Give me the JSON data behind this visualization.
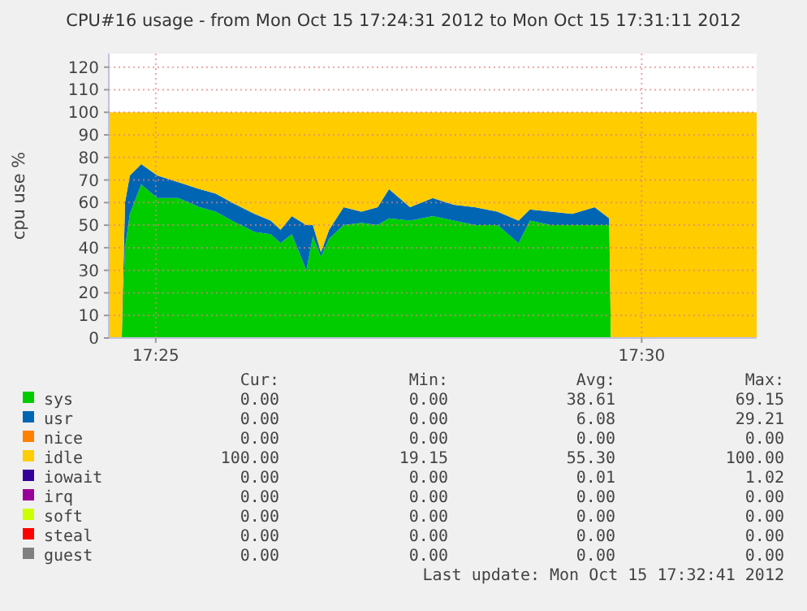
{
  "chart_data": {
    "type": "area",
    "stacked": true,
    "title": "CPU#16 usage - from Mon Oct 15 17:24:31 2012 to Mon Oct 15 17:31:11 2012",
    "ylabel": "cpu use %",
    "x": [
      17.40861,
      17.41083,
      17.41139,
      17.41222,
      17.41417,
      17.41694,
      17.42056,
      17.42417,
      17.42694,
      17.42972,
      17.43361,
      17.43639,
      17.43806,
      17.44,
      17.4425,
      17.44361,
      17.445,
      17.44639,
      17.44889,
      17.45194,
      17.45472,
      17.45667,
      17.46028,
      17.46417,
      17.46778,
      17.47139,
      17.47528,
      17.47889,
      17.48083,
      17.48444,
      17.48806,
      17.49194,
      17.49444,
      17.49472,
      17.51972
    ],
    "xlim": [
      17.40861,
      17.51972
    ],
    "xticks": [
      {
        "value": 17.416667,
        "label": "17:25"
      },
      {
        "value": 17.5,
        "label": "17:30"
      }
    ],
    "ylim": [
      0,
      126
    ],
    "yticks": [
      0,
      10,
      20,
      30,
      40,
      50,
      60,
      70,
      80,
      90,
      100,
      110,
      120
    ],
    "grid": true,
    "legend": "bottom",
    "series": [
      {
        "name": "sys",
        "color": "#00cc00",
        "values": [
          0,
          0,
          40,
          55,
          68,
          62,
          62,
          58,
          56,
          52,
          47,
          46,
          42,
          46,
          30,
          45,
          36,
          44,
          50,
          51,
          50,
          53,
          52,
          54,
          52,
          50,
          50,
          42,
          52,
          50,
          50,
          50,
          50,
          0,
          0
        ]
      },
      {
        "name": "usr",
        "color": "#0066b3",
        "values": [
          0,
          0,
          20,
          17,
          9,
          10,
          7,
          8,
          8,
          8,
          8,
          6,
          6,
          8,
          20,
          5,
          2,
          4,
          8,
          5,
          8,
          13,
          6,
          8,
          7,
          8,
          6,
          10,
          5,
          6,
          5,
          8,
          3,
          0,
          0
        ]
      },
      {
        "name": "nice",
        "color": "#ff8000",
        "values": [
          null,
          null,
          null,
          null,
          null,
          null,
          null,
          null,
          null,
          null,
          null,
          null,
          null,
          null,
          null,
          null,
          null,
          null,
          null,
          null,
          null,
          null,
          null,
          null,
          null,
          null,
          null,
          null,
          null,
          null,
          null,
          null,
          null,
          null,
          null
        ]
      },
      {
        "name": "idle",
        "color": "#ffcc00",
        "values": [
          100,
          100,
          40,
          28,
          23,
          28,
          31,
          34,
          36,
          40,
          45,
          48,
          52,
          46,
          50,
          50,
          62,
          52,
          42,
          44,
          42,
          34,
          42,
          38,
          41,
          42,
          44,
          48,
          43,
          44,
          45,
          42,
          47,
          100,
          100
        ]
      },
      {
        "name": "iowait",
        "color": "#330099",
        "values": [
          null,
          null,
          null,
          null,
          null,
          null,
          null,
          null,
          null,
          null,
          null,
          null,
          null,
          null,
          null,
          null,
          null,
          null,
          null,
          null,
          null,
          null,
          null,
          null,
          null,
          null,
          null,
          null,
          null,
          null,
          null,
          null,
          null,
          null,
          null
        ]
      },
      {
        "name": "irq",
        "color": "#990099",
        "values": [
          null,
          null,
          null,
          null,
          null,
          null,
          null,
          null,
          null,
          null,
          null,
          null,
          null,
          null,
          null,
          null,
          null,
          null,
          null,
          null,
          null,
          null,
          null,
          null,
          null,
          null,
          null,
          null,
          null,
          null,
          null,
          null,
          null,
          null,
          null
        ]
      },
      {
        "name": "soft",
        "color": "#ccff00",
        "values": [
          null,
          null,
          null,
          null,
          null,
          null,
          null,
          null,
          null,
          null,
          null,
          null,
          null,
          null,
          null,
          null,
          null,
          null,
          null,
          null,
          null,
          null,
          null,
          null,
          null,
          null,
          null,
          null,
          null,
          null,
          null,
          null,
          null,
          null,
          null
        ]
      },
      {
        "name": "steal",
        "color": "#ff0000",
        "values": [
          null,
          null,
          null,
          null,
          null,
          null,
          null,
          null,
          null,
          null,
          null,
          null,
          null,
          null,
          null,
          null,
          null,
          null,
          null,
          null,
          null,
          null,
          null,
          null,
          null,
          null,
          null,
          null,
          null,
          null,
          null,
          null,
          null,
          null,
          null
        ]
      },
      {
        "name": "guest",
        "color": "#808080",
        "values": [
          null,
          null,
          null,
          null,
          null,
          null,
          null,
          null,
          null,
          null,
          null,
          null,
          null,
          null,
          null,
          null,
          null,
          null,
          null,
          null,
          null,
          null,
          null,
          null,
          null,
          null,
          null,
          null,
          null,
          null,
          null,
          null,
          null,
          null,
          null
        ]
      }
    ],
    "annotations": [
      "Cur:",
      "Min:",
      "Avg:",
      "Max:",
      "0.00",
      "0.00",
      "38.61",
      "69.15",
      "0.00",
      "0.00",
      "6.08",
      "29.21",
      "0.00",
      "0.00",
      "0.00",
      "0.00",
      "100.00",
      "19.15",
      "55.30",
      "100.00",
      "0.00",
      "0.00",
      "0.01",
      "1.02",
      "0.00",
      "0.00",
      "0.00",
      "0.00",
      "0.00",
      "0.00",
      "0.00",
      "0.00",
      "0.00",
      "0.00",
      "0.00",
      "0.00",
      "0.00",
      "0.00",
      "0.00",
      "0.00",
      "Last update:  Mon Oct 15 17:32:41 2012"
    ]
  }
}
